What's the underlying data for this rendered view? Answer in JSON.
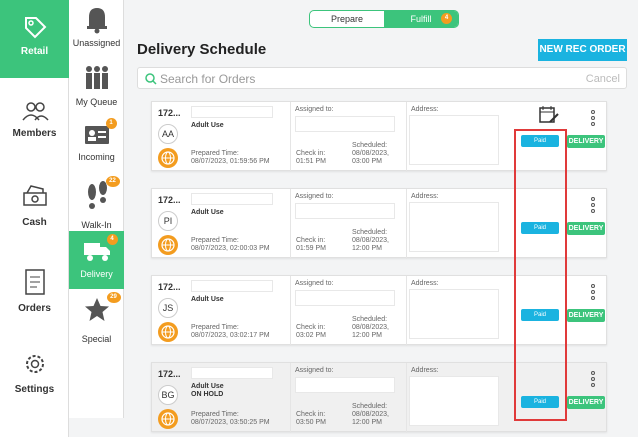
{
  "nav": [
    {
      "label": "Retail",
      "icon": "retail-tag-icon",
      "active": true
    },
    {
      "label": "Members",
      "icon": "members-icon"
    },
    {
      "label": "Cash",
      "icon": "cash-icon"
    },
    {
      "label": "Orders",
      "icon": "orders-icon"
    },
    {
      "label": "Settings",
      "icon": "settings-gear-icon"
    }
  ],
  "subnav": [
    {
      "label": "Unassigned",
      "icon": "bell-icon",
      "badge": ""
    },
    {
      "label": "My Queue",
      "icon": "people-queue-icon",
      "badge": ""
    },
    {
      "label": "Incoming",
      "icon": "id-card-icon",
      "badge": "1"
    },
    {
      "label": "Walk-In",
      "icon": "footprints-icon",
      "badge": "22"
    },
    {
      "label": "Delivery",
      "icon": "truck-icon",
      "badge": "4",
      "active": true
    },
    {
      "label": "Special",
      "icon": "star-icon",
      "badge": "29"
    }
  ],
  "toggle": {
    "prepare": "Prepare",
    "fulfill": "Fulfill",
    "fulfill_badge": "4"
  },
  "page_title": "Delivery Schedule",
  "new_rec_button": "NEW REC ORDER",
  "search": {
    "placeholder": "Search for Orders",
    "cancel": "Cancel"
  },
  "labels": {
    "assigned_to": "Assigned to:",
    "address": "Address:",
    "prepared_time": "Prepared Time:",
    "check_in": "Check in:",
    "scheduled": "Scheduled:",
    "paid": "Paid",
    "delivery": "DELIVERY"
  },
  "orders": [
    {
      "id": "172...",
      "initials": "AA",
      "type": "Adult Use",
      "hold": "",
      "prepared": "08/07/2023, 01:59:56 PM",
      "check_in": "01:51 PM",
      "sched_date": "08/08/2023,",
      "sched_time": "03:00 PM"
    },
    {
      "id": "172...",
      "initials": "PI",
      "type": "Adult Use",
      "hold": "",
      "prepared": "08/07/2023, 02:00:03 PM",
      "check_in": "01:59 PM",
      "sched_date": "08/08/2023,",
      "sched_time": "12:00 PM"
    },
    {
      "id": "172...",
      "initials": "JS",
      "type": "Adult Use",
      "hold": "",
      "prepared": "08/07/2023, 03:02:17 PM",
      "check_in": "03:02 PM",
      "sched_date": "08/08/2023,",
      "sched_time": "12:00 PM"
    },
    {
      "id": "172...",
      "initials": "BG",
      "type": "Adult Use",
      "hold": "ON HOLD",
      "prepared": "08/07/2023, 03:50:25 PM",
      "check_in": "03:50 PM",
      "sched_date": "08/08/2023,",
      "sched_time": "12:00 PM"
    }
  ]
}
